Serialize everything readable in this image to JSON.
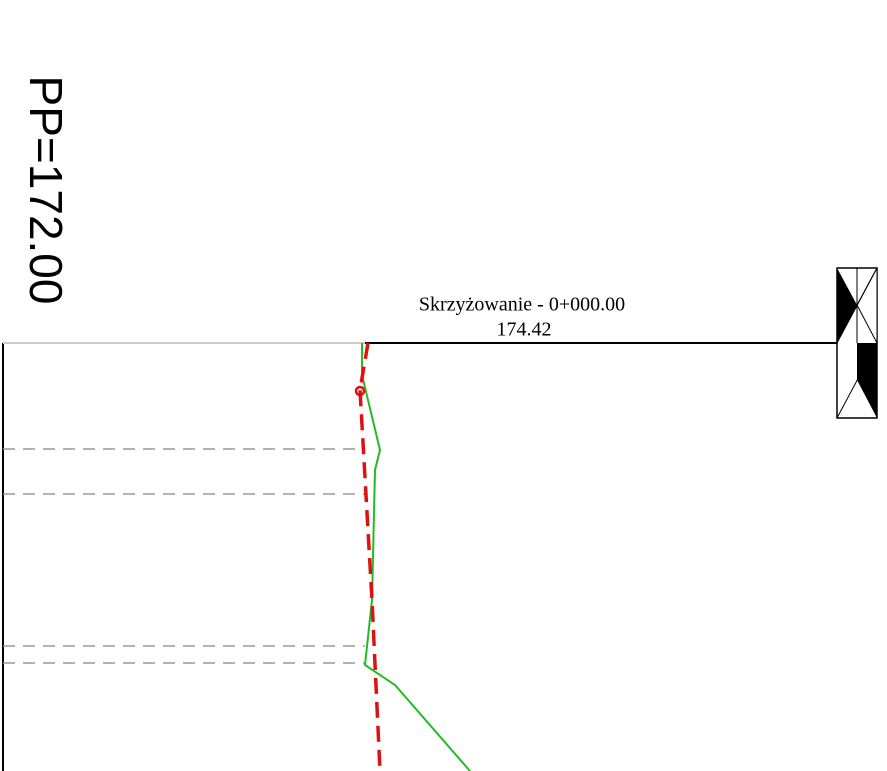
{
  "labels": {
    "vertical": "PP=172.00",
    "station": "Skrzyżowanie - 0+000.00",
    "elevation": "174.42"
  }
}
